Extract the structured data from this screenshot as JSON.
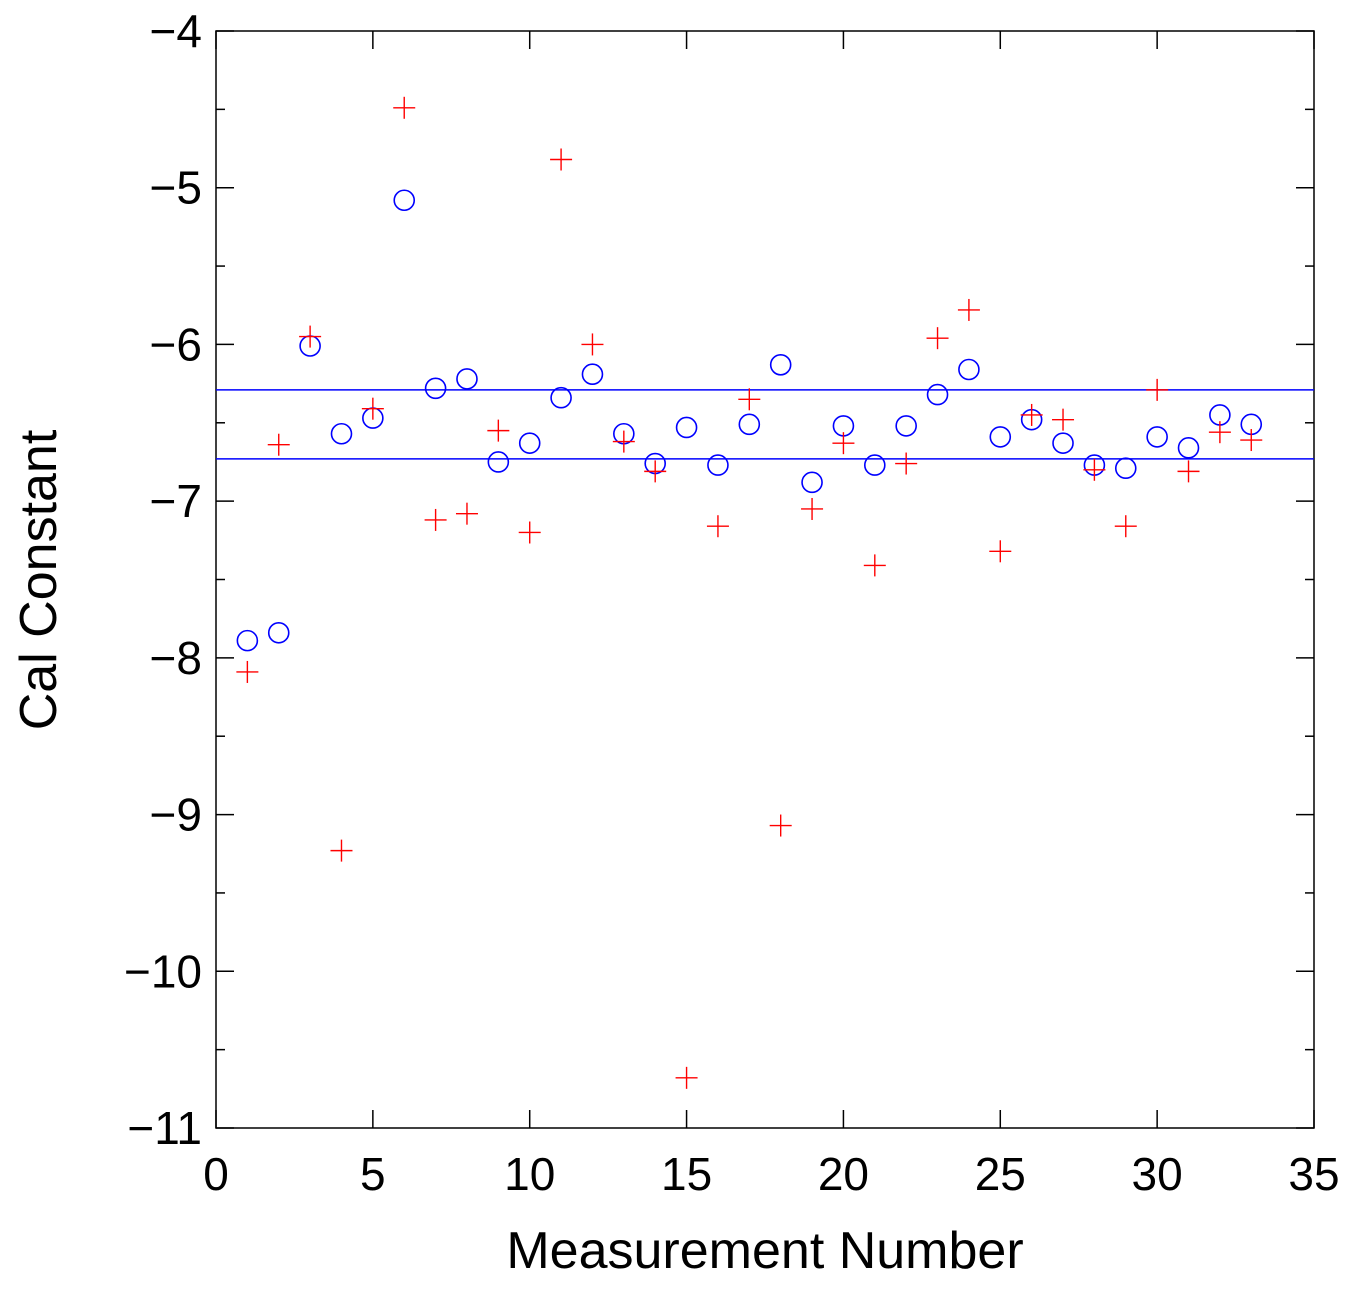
{
  "chart_data": {
    "type": "scatter",
    "title": "",
    "xlabel": "Measurement Number",
    "ylabel": "Cal Constant",
    "xlim": [
      0,
      35
    ],
    "ylim": [
      -11,
      -4
    ],
    "xticks": [
      0,
      5,
      10,
      15,
      20,
      25,
      30,
      35
    ],
    "yticks": [
      -11,
      -10,
      -9,
      -8,
      -7,
      -6,
      -5,
      -4
    ],
    "xtick_labels": [
      "0",
      "5",
      "10",
      "15",
      "20",
      "25",
      "30",
      "35"
    ],
    "ytick_labels": [
      "−11",
      "−10",
      "−9",
      "−8",
      "−7",
      "−6",
      "−5",
      "−4"
    ],
    "grid": false,
    "legend": "none",
    "series": [
      {
        "marker": "circle",
        "color": "#0000ff",
        "x": [
          1,
          2,
          3,
          4,
          5,
          6,
          7,
          8,
          9,
          10,
          11,
          12,
          13,
          14,
          15,
          16,
          17,
          18,
          19,
          20,
          21,
          22,
          23,
          24,
          25,
          26,
          27,
          28,
          29,
          30,
          31,
          32,
          33
        ],
        "y": [
          -7.89,
          -7.84,
          -6.01,
          -6.57,
          -6.47,
          -5.08,
          -6.28,
          -6.22,
          -6.75,
          -6.63,
          -6.34,
          -6.19,
          -6.57,
          -6.76,
          -6.53,
          -6.77,
          -6.51,
          -6.13,
          -6.88,
          -6.52,
          -6.77,
          -6.52,
          -6.32,
          -6.16,
          -6.59,
          -6.48,
          -6.63,
          -6.77,
          -6.79,
          -6.59,
          -6.66,
          -6.45,
          -6.51
        ]
      },
      {
        "marker": "plus",
        "color": "#ff0000",
        "x": [
          1,
          2,
          3,
          4,
          5,
          6,
          7,
          8,
          9,
          10,
          11,
          12,
          13,
          14,
          15,
          16,
          17,
          18,
          19,
          20,
          21,
          22,
          23,
          24,
          25,
          26,
          27,
          28,
          29,
          30,
          31,
          32,
          33
        ],
        "y": [
          -8.09,
          -6.64,
          -5.95,
          -9.23,
          -6.41,
          -4.49,
          -7.12,
          -7.08,
          -6.55,
          -7.2,
          -4.82,
          -6.0,
          -6.62,
          -6.81,
          -10.68,
          -7.16,
          -6.35,
          -9.07,
          -7.05,
          -6.63,
          -7.41,
          -6.76,
          -5.96,
          -5.78,
          -7.32,
          -6.45,
          -6.48,
          -6.8,
          -7.16,
          -6.29,
          -6.81,
          -6.56,
          -6.61
        ]
      }
    ],
    "reference_lines": [
      {
        "orientation": "horizontal",
        "y": -6.29,
        "color": "#0000ff"
      },
      {
        "orientation": "horizontal",
        "y": -6.73,
        "color": "#0000ff"
      }
    ]
  }
}
